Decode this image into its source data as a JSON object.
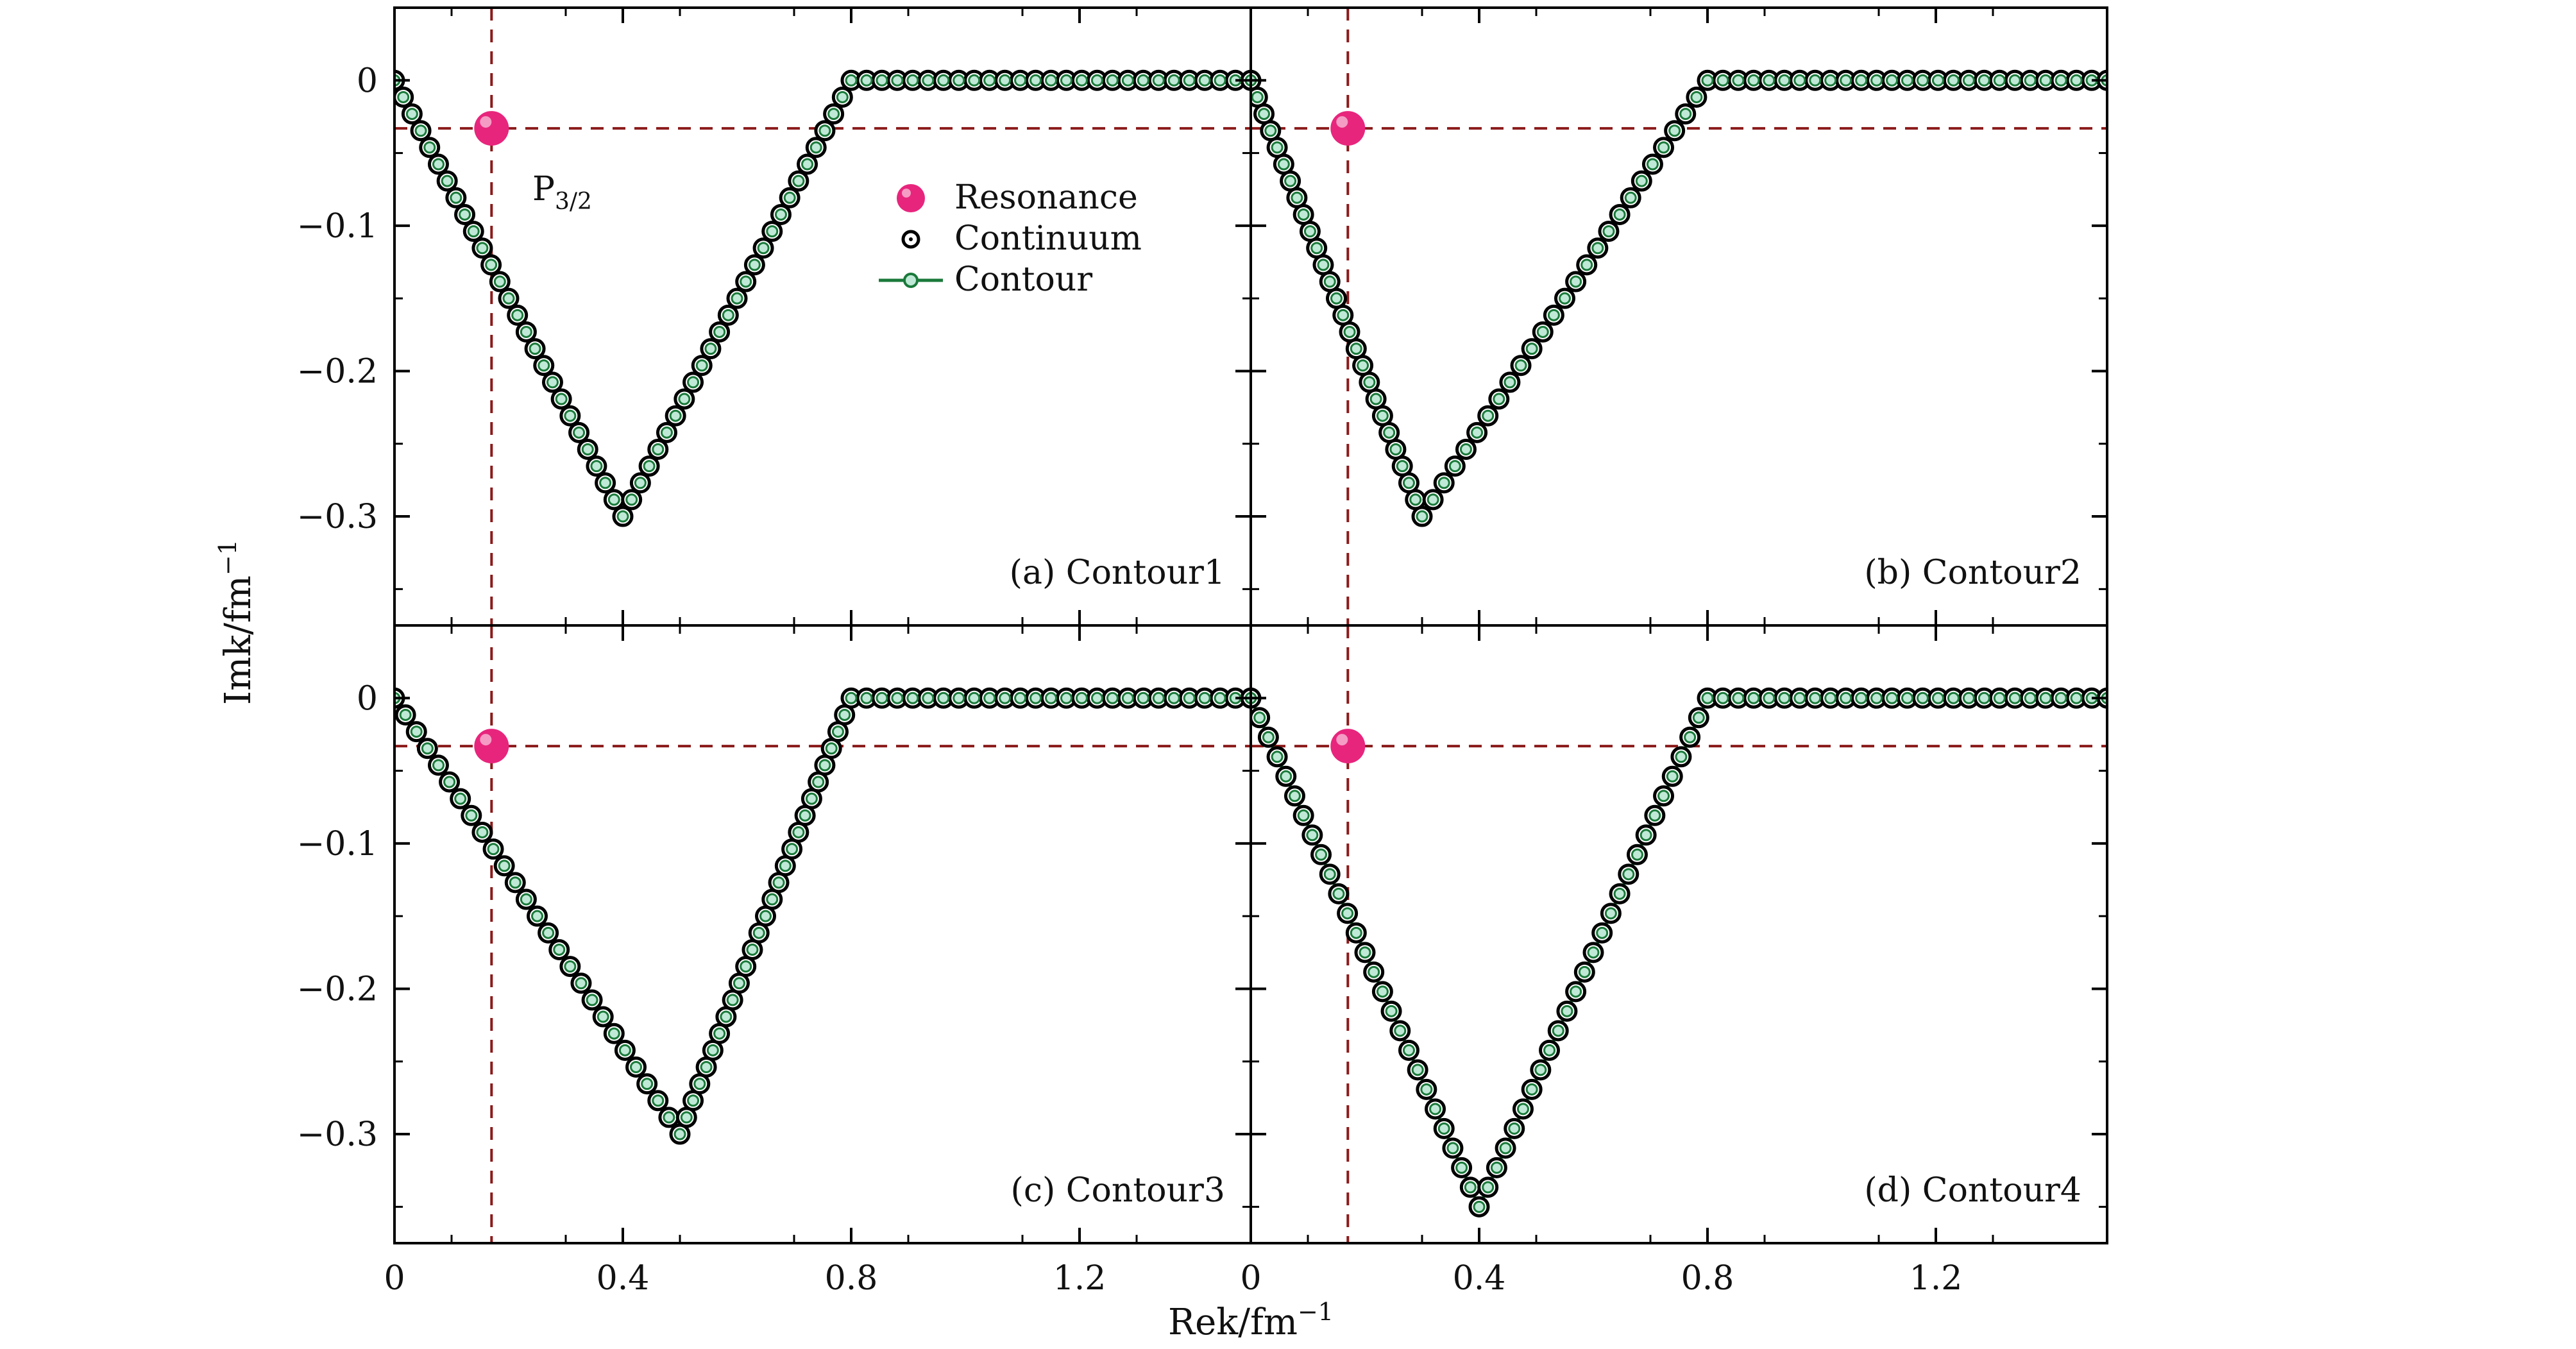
{
  "figure": {
    "xlabel": "Rek/fm",
    "xlabel_sup": "−1",
    "ylabel": "Imk/fm",
    "ylabel_sup": "−1"
  },
  "legend": {
    "resonance": "Resonance",
    "continuum": "Continuum",
    "contour": "Contour"
  },
  "colors": {
    "resonance": "#e8257d",
    "contour": "#1a7a3a",
    "contour_fill": "#bfe9d6",
    "continuum": "#000000",
    "guide": "#8b1a1a",
    "frame": "#000000"
  },
  "resonance_label": {
    "main": "P",
    "sub": "3/2"
  },
  "chart_data": [
    {
      "type": "scatter",
      "label": "(a) Contour1",
      "contour_vertices": {
        "x": [
          0,
          0.4,
          0.8,
          1.5
        ],
        "y": [
          0,
          -0.3,
          0,
          0
        ]
      },
      "resonance": {
        "x": 0.17,
        "y": -0.033
      },
      "guide_lines": {
        "x": 0.17,
        "y": -0.033
      },
      "xlim": [
        0,
        1.5
      ],
      "ylim": [
        -0.375,
        0.05
      ],
      "xticks": [
        0,
        0.4,
        0.8,
        1.2
      ],
      "yticks": [
        0,
        -0.1,
        -0.2,
        -0.3
      ],
      "ytick_labels": [
        "0",
        "−0.1",
        "−0.2",
        "−0.3"
      ],
      "xtick_labels": [
        "",
        "",
        "",
        ""
      ],
      "grid": false,
      "legend": true,
      "show_res_label": true
    },
    {
      "type": "scatter",
      "label": "(b) Contour2",
      "contour_vertices": {
        "x": [
          0,
          0.3,
          0.8,
          1.5
        ],
        "y": [
          0,
          -0.3,
          0,
          0
        ]
      },
      "resonance": {
        "x": 0.17,
        "y": -0.033
      },
      "guide_lines": {
        "x": 0.17,
        "y": -0.033
      },
      "xlim": [
        0,
        1.5
      ],
      "ylim": [
        -0.375,
        0.05
      ],
      "xticks": [
        0,
        0.4,
        0.8,
        1.2
      ],
      "yticks": [
        0,
        -0.1,
        -0.2,
        -0.3
      ],
      "ytick_labels": [
        "",
        "",
        "",
        ""
      ],
      "xtick_labels": [
        "",
        "",
        "",
        ""
      ],
      "grid": false,
      "legend": false,
      "show_res_label": false
    },
    {
      "type": "scatter",
      "label": "(c) Contour3",
      "contour_vertices": {
        "x": [
          0,
          0.5,
          0.8,
          1.5
        ],
        "y": [
          0,
          -0.3,
          0,
          0
        ]
      },
      "resonance": {
        "x": 0.17,
        "y": -0.033
      },
      "guide_lines": {
        "x": 0.17,
        "y": -0.033
      },
      "xlim": [
        0,
        1.5
      ],
      "ylim": [
        -0.375,
        0.05
      ],
      "xticks": [
        0,
        0.4,
        0.8,
        1.2
      ],
      "yticks": [
        0,
        -0.1,
        -0.2,
        -0.3
      ],
      "ytick_labels": [
        "0",
        "−0.1",
        "−0.2",
        "−0.3"
      ],
      "xtick_labels": [
        "0",
        "0.4",
        "0.8",
        "1.2"
      ],
      "grid": false,
      "legend": false,
      "show_res_label": false
    },
    {
      "type": "scatter",
      "label": "(d) Contour4",
      "contour_vertices": {
        "x": [
          0,
          0.4,
          0.8,
          1.5
        ],
        "y": [
          0,
          -0.35,
          0,
          0
        ]
      },
      "resonance": {
        "x": 0.17,
        "y": -0.033
      },
      "guide_lines": {
        "x": 0.17,
        "y": -0.033
      },
      "xlim": [
        0,
        1.5
      ],
      "ylim": [
        -0.375,
        0.05
      ],
      "xticks": [
        0,
        0.4,
        0.8,
        1.2
      ],
      "yticks": [
        0,
        -0.1,
        -0.2,
        -0.3
      ],
      "ytick_labels": [
        "",
        "",
        "",
        ""
      ],
      "xtick_labels": [
        "0",
        "0.4",
        "0.8",
        "1.2"
      ],
      "grid": false,
      "legend": false,
      "show_res_label": false
    }
  ]
}
